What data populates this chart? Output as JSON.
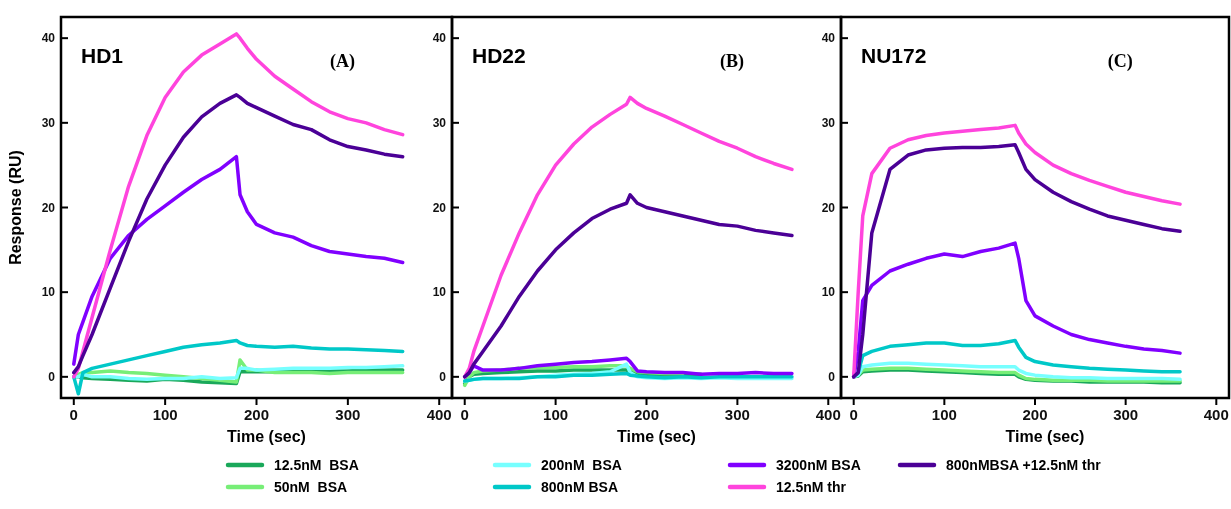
{
  "chart_data": [
    {
      "type": "line",
      "title": "HD1",
      "annotations": [
        "(A)"
      ],
      "xlabel": "Time (sec)",
      "ylabel": "Response (RU)",
      "xlim": [
        -14,
        414
      ],
      "ylim": [
        -2.5,
        42.5
      ],
      "xticks": [
        0,
        100,
        200,
        300,
        400
      ],
      "yticks": [
        0,
        10,
        20,
        30,
        40
      ],
      "grid": false,
      "legend": "bottom",
      "marker": "none",
      "line_style": "solid",
      "x": [
        0,
        5,
        10,
        20,
        40,
        60,
        80,
        100,
        120,
        140,
        160,
        178,
        182,
        190,
        200,
        220,
        240,
        260,
        280,
        300,
        320,
        340,
        360
      ],
      "series": [
        {
          "name": "12.5nM  BSA",
          "color": "#1aa85a",
          "values": [
            0,
            0,
            -0.1,
            -0.2,
            -0.3,
            -0.4,
            -0.5,
            -0.3,
            -0.4,
            -0.6,
            -0.7,
            -0.8,
            0.6,
            0.6,
            0.6,
            0.6,
            0.7,
            0.7,
            0.7,
            0.7,
            0.8,
            0.8,
            0.8
          ]
        },
        {
          "name": "50nM  BSA",
          "color": "#77ee77",
          "values": [
            0,
            0.3,
            0.5,
            0.5,
            0.7,
            0.5,
            0.4,
            0.2,
            0,
            -0.2,
            -0.4,
            -0.6,
            2,
            0.8,
            0.8,
            0.5,
            0.5,
            0.5,
            0.4,
            0.5,
            0.5,
            0.5,
            0.5
          ]
        },
        {
          "name": "200nM  BSA",
          "color": "#77ffff",
          "values": [
            0,
            0,
            0.3,
            0,
            0,
            -0.2,
            -0.3,
            -0.2,
            -0.2,
            0,
            -0.2,
            -0.1,
            1,
            1,
            0.8,
            0.9,
            1,
            1,
            1,
            1.1,
            1.1,
            1.2,
            1.3
          ]
        },
        {
          "name": "800nM BSA",
          "color": "#00c8c8",
          "values": [
            0,
            -2,
            0.5,
            1,
            1.5,
            2,
            2.5,
            3,
            3.5,
            3.8,
            4,
            4.3,
            4,
            3.7,
            3.6,
            3.5,
            3.6,
            3.4,
            3.3,
            3.3,
            3.2,
            3.1,
            3
          ]
        },
        {
          "name": "3200nM BSA",
          "color": "#8000ff",
          "values": [
            1.5,
            5,
            6.5,
            9.5,
            14,
            16.7,
            18.6,
            20.2,
            21.8,
            23.3,
            24.5,
            26,
            21.5,
            19.5,
            18,
            17,
            16.5,
            15.5,
            14.8,
            14.5,
            14.2,
            14,
            13.5
          ]
        },
        {
          "name": "12.5nM thr",
          "color": "#ff44dd",
          "values": [
            0,
            1,
            3,
            7,
            15,
            22.5,
            28.5,
            33,
            36,
            38,
            39.3,
            40.5,
            40,
            38.8,
            37.5,
            35.5,
            34,
            32.5,
            31.3,
            30.5,
            30,
            29.2,
            28.6
          ]
        },
        {
          "name": "800nMBSA +12.5nM thr",
          "color": "#4b0096",
          "values": [
            0.5,
            1.2,
            2.5,
            5,
            10.5,
            16,
            21,
            25,
            28.3,
            30.7,
            32.3,
            33.3,
            33,
            32.3,
            31.8,
            30.8,
            29.8,
            29.2,
            28,
            27.2,
            26.8,
            26.3,
            26
          ]
        }
      ]
    },
    {
      "type": "line",
      "title": "HD22",
      "annotations": [
        "(B)"
      ],
      "xlabel": "Time (sec)",
      "xlim": [
        -14,
        414
      ],
      "ylim": [
        -2.5,
        42.5
      ],
      "xticks": [
        0,
        100,
        200,
        300,
        400
      ],
      "yticks": [
        0,
        10,
        20,
        30,
        40
      ],
      "grid": false,
      "marker": "none",
      "line_style": "solid",
      "x": [
        0,
        5,
        10,
        20,
        40,
        60,
        80,
        100,
        120,
        140,
        160,
        178,
        182,
        190,
        200,
        220,
        240,
        260,
        280,
        300,
        320,
        340,
        360
      ],
      "series": [
        {
          "color": "#1aa85a",
          "values": [
            -0.8,
            0,
            0.3,
            0.4,
            0.5,
            0.6,
            0.7,
            0.7,
            0.8,
            0.8,
            0.8,
            0.8,
            0.6,
            0.4,
            0.3,
            0.3,
            0.3,
            0.3,
            null,
            null,
            null,
            null,
            null
          ]
        },
        {
          "color": "#77ee77",
          "values": [
            -1,
            0,
            0.5,
            0.7,
            0.8,
            1,
            1.1,
            1.1,
            1.2,
            1.2,
            1.3,
            1.3,
            1,
            0.6,
            0.5,
            0.4,
            0.4,
            null,
            null,
            null,
            null,
            null,
            null
          ]
        },
        {
          "color": "#77ffff",
          "values": [
            -0.5,
            -0.4,
            -0.3,
            -0.2,
            -0.2,
            -0.1,
            0,
            0.2,
            0.3,
            0.4,
            0.6,
            1.5,
            0.5,
            0,
            -0.1,
            -0.2,
            -0.1,
            -0.2,
            -0.1,
            -0.2,
            -0.2,
            -0.2,
            -0.2
          ]
        },
        {
          "color": "#00c8c8",
          "values": [
            -0.5,
            -0.4,
            -0.3,
            -0.2,
            -0.2,
            -0.2,
            0,
            0,
            0.2,
            0.2,
            0.3,
            0.4,
            0.2,
            0.1,
            0,
            -0.1,
            0,
            -0.1,
            0,
            0,
            0,
            0,
            0
          ]
        },
        {
          "color": "#8000ff",
          "values": [
            0,
            0.5,
            1.3,
            0.8,
            0.8,
            1,
            1.3,
            1.5,
            1.7,
            1.8,
            2,
            2.2,
            1.8,
            0.7,
            0.6,
            0.5,
            0.5,
            0.3,
            0.4,
            0.4,
            0.5,
            0.4,
            0.4
          ]
        },
        {
          "color": "#ff44dd",
          "values": [
            0,
            1,
            3,
            6,
            12,
            17,
            21.5,
            25,
            27.5,
            29.5,
            31,
            32.2,
            33,
            32.3,
            31.7,
            30.8,
            29.8,
            28.8,
            27.8,
            27,
            26,
            25.2,
            24.5
          ]
        },
        {
          "color": "#4b0096",
          "values": [
            0,
            0.5,
            1.5,
            3,
            6,
            9.5,
            12.5,
            15,
            17,
            18.7,
            19.8,
            20.5,
            21.5,
            20.5,
            20,
            19.5,
            19,
            18.5,
            18,
            17.8,
            17.3,
            17,
            16.7
          ]
        }
      ]
    },
    {
      "type": "line",
      "title": "NU172",
      "annotations": [
        "(C)"
      ],
      "xlabel": "Time (sec)",
      "xlim": [
        -14,
        414
      ],
      "ylim": [
        -2.5,
        42.5
      ],
      "xticks": [
        0,
        100,
        200,
        300,
        400
      ],
      "yticks": [
        0,
        10,
        20,
        30,
        40
      ],
      "grid": false,
      "marker": "none",
      "line_style": "solid",
      "x": [
        0,
        5,
        10,
        20,
        40,
        60,
        80,
        100,
        120,
        140,
        160,
        178,
        182,
        190,
        200,
        220,
        240,
        260,
        280,
        300,
        320,
        340,
        360
      ],
      "series": [
        {
          "color": "#1aa85a",
          "values": [
            0,
            0.1,
            0.6,
            0.7,
            0.8,
            0.8,
            0.7,
            0.6,
            0.5,
            0.4,
            0.3,
            0.3,
            0,
            -0.3,
            -0.4,
            -0.5,
            -0.5,
            -0.6,
            -0.6,
            -0.6,
            -0.6,
            -0.7,
            -0.7
          ]
        },
        {
          "color": "#77ee77",
          "values": [
            0,
            0.2,
            0.8,
            0.9,
            1,
            1,
            0.9,
            0.8,
            0.7,
            0.6,
            0.5,
            0.5,
            0.2,
            -0.2,
            -0.3,
            -0.4,
            -0.4,
            -0.4,
            -0.5,
            -0.5,
            -0.5,
            -0.5,
            -0.5
          ]
        },
        {
          "color": "#77ffff",
          "values": [
            0,
            0.2,
            1.2,
            1.4,
            1.6,
            1.6,
            1.5,
            1.4,
            1.3,
            1.2,
            1.2,
            1.2,
            0.8,
            0.4,
            0.2,
            0,
            -0.1,
            -0.1,
            -0.2,
            -0.2,
            -0.2,
            -0.2,
            -0.3
          ]
        },
        {
          "color": "#00c8c8",
          "values": [
            0,
            0.5,
            2.5,
            3,
            3.6,
            3.8,
            4,
            4,
            3.7,
            3.7,
            3.9,
            4.3,
            3.5,
            2.3,
            1.8,
            1.4,
            1.2,
            1,
            0.9,
            0.8,
            0.7,
            0.6,
            0.6
          ]
        },
        {
          "color": "#8000ff",
          "values": [
            0,
            3,
            9,
            10.8,
            12.5,
            13.3,
            14,
            14.5,
            14.2,
            14.8,
            15.2,
            15.8,
            14,
            9,
            7.2,
            6,
            5,
            4.4,
            4,
            3.6,
            3.3,
            3.1,
            2.8
          ]
        },
        {
          "color": "#ff44dd",
          "values": [
            0,
            10,
            19,
            24,
            27,
            28,
            28.5,
            28.8,
            29,
            29.2,
            29.4,
            29.7,
            28.8,
            27.5,
            26.5,
            25,
            24,
            23.2,
            22.5,
            21.8,
            21.3,
            20.8,
            20.4
          ]
        },
        {
          "color": "#4b0096",
          "values": [
            0,
            0.5,
            5,
            17,
            24.5,
            26.2,
            26.8,
            27,
            27.1,
            27.1,
            27.2,
            27.4,
            26.5,
            24.5,
            23.3,
            21.8,
            20.7,
            19.8,
            19,
            18.5,
            18,
            17.5,
            17.2
          ]
        }
      ]
    }
  ]
}
